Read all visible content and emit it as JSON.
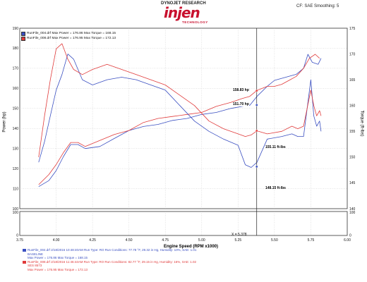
{
  "header": {
    "dyno_label": "DYNOJET RESEARCH",
    "logo_text": "injen",
    "logo_sub": "TECHNOLOGY",
    "corrections": "CF: SAE  Smoothing: 5"
  },
  "legend": [
    {
      "text": "RunFile_004.drf Max Power = 176.86  Max Torque = 168.15",
      "color": "#3a4fc1"
    },
    {
      "text": "RunFile_008.drf Max Power = 176.95  Max Torque = 172.13",
      "color": "#e03a3a"
    }
  ],
  "annotations": {
    "hp_158": "158.83 hp",
    "hp_151": "151.70 hp",
    "tq_155": "155.11 ft-lbs",
    "tq_148": "148.15 ft-lbs",
    "cursor": "X = 5.378"
  },
  "bottom": {
    "run1_line1": "RunFile_004.drf   2/18/2016 10:48:40AM  Run Type: RO  Run Conditions: 77.78 °F, 29.32 in Hg,  Humidity: 10%, SAE: 1.01",
    "run1_line2": "BASELINE",
    "run1_line3": "Max Power = 176.86  Max Torque = 168.15",
    "run2_line1": "RunFile_008.drf   2/18/2016 11:46:44AM  Run Type: RO  Run Conditions: 82.77 °F, 29.15 in Hg,  Humidity: 16%, SAE: 1.02",
    "run2_line2": "SES 8573",
    "run2_line3": "Max Power = 176.95  Max Torque = 172.13"
  },
  "chart_data": {
    "type": "line",
    "title": "",
    "xlabel": "Engine Speed (RPM x1000)",
    "ylabel_left": "Power (hp)",
    "ylabel_right": "Torque (ft-lbs)",
    "xlim": [
      3.75,
      6.0
    ],
    "ylim_power": [
      100,
      190
    ],
    "ylim_torque": [
      140,
      175
    ],
    "x_ticks": [
      "3.75",
      "4.00",
      "4.25",
      "4.50",
      "4.75",
      "5.00",
      "5.25",
      "5.50",
      "5.75",
      "6.00"
    ],
    "y_ticks_left": [
      "100",
      "110",
      "120",
      "130",
      "140",
      "150",
      "160",
      "170",
      "180",
      "190"
    ],
    "y_ticks_right": [
      "140",
      "145",
      "150",
      "155",
      "160",
      "165",
      "170",
      "175"
    ],
    "lower_panel_ticks": [
      "100",
      "0"
    ],
    "grid": true,
    "cursor_x": 5.378,
    "series": [
      {
        "name": "RunFile_004.drf",
        "quantity": "power",
        "color": "#3a4fc1",
        "x": [
          3.88,
          3.95,
          4.0,
          4.05,
          4.1,
          4.15,
          4.2,
          4.3,
          4.4,
          4.5,
          4.6,
          4.7,
          4.8,
          4.9,
          5.0,
          5.1,
          5.2,
          5.28,
          5.33,
          5.38,
          5.45,
          5.5,
          5.55,
          5.6,
          5.65,
          5.7,
          5.73,
          5.76,
          5.8,
          5.82
        ],
        "y": [
          111,
          114,
          119,
          126,
          132,
          132,
          130,
          131,
          135,
          139,
          141,
          142,
          144,
          145,
          147,
          148,
          150,
          151,
          151.5,
          156,
          161,
          164,
          165,
          166,
          167,
          170,
          177,
          173,
          172,
          175
        ]
      },
      {
        "name": "RunFile_008.drf",
        "quantity": "power",
        "color": "#e03a3a",
        "x": [
          3.88,
          3.95,
          4.0,
          4.05,
          4.1,
          4.15,
          4.2,
          4.3,
          4.4,
          4.5,
          4.6,
          4.7,
          4.8,
          4.9,
          5.0,
          5.1,
          5.2,
          5.28,
          5.33,
          5.38,
          5.45,
          5.5,
          5.55,
          5.6,
          5.65,
          5.7,
          5.74,
          5.78,
          5.81
        ],
        "y": [
          112,
          117,
          122,
          128,
          133,
          133,
          131,
          134,
          137,
          139,
          143,
          145,
          146,
          147,
          148,
          151,
          153,
          155,
          156,
          159,
          161,
          161,
          162,
          164,
          166,
          170,
          175,
          177,
          175
        ]
      },
      {
        "name": "RunFile_004.drf",
        "quantity": "torque",
        "color": "#3a4fc1",
        "x": [
          3.88,
          3.92,
          3.96,
          4.0,
          4.04,
          4.08,
          4.12,
          4.18,
          4.25,
          4.35,
          4.45,
          4.55,
          4.65,
          4.75,
          4.85,
          4.95,
          5.05,
          5.15,
          5.25,
          5.3,
          5.34,
          5.38,
          5.45,
          5.55,
          5.62,
          5.66,
          5.7,
          5.75,
          5.77,
          5.79,
          5.81,
          5.82
        ],
        "y": [
          149,
          153,
          158,
          163,
          166,
          170,
          169,
          165,
          164,
          165,
          165.5,
          165,
          164,
          163,
          160,
          157,
          155,
          153.5,
          152.3,
          148.5,
          148,
          149,
          153.5,
          154,
          154.5,
          154,
          154,
          165,
          158,
          156,
          157,
          155
        ]
      },
      {
        "name": "RunFile_008.drf",
        "quantity": "torque",
        "color": "#e03a3a",
        "x": [
          3.88,
          3.92,
          3.96,
          4.0,
          4.04,
          4.08,
          4.12,
          4.18,
          4.25,
          4.35,
          4.45,
          4.55,
          4.65,
          4.75,
          4.85,
          4.95,
          5.05,
          5.15,
          5.25,
          5.3,
          5.34,
          5.38,
          5.45,
          5.55,
          5.62,
          5.66,
          5.7,
          5.75,
          5.77,
          5.79,
          5.81,
          5.82
        ],
        "y": [
          150,
          158,
          165,
          171,
          172,
          169,
          167,
          166,
          167,
          168,
          167,
          166,
          165,
          164,
          162,
          160,
          157,
          155.5,
          154.5,
          154,
          154.3,
          155.1,
          154.5,
          155,
          156,
          155.5,
          156,
          163,
          160,
          158,
          159,
          158
        ]
      }
    ]
  }
}
